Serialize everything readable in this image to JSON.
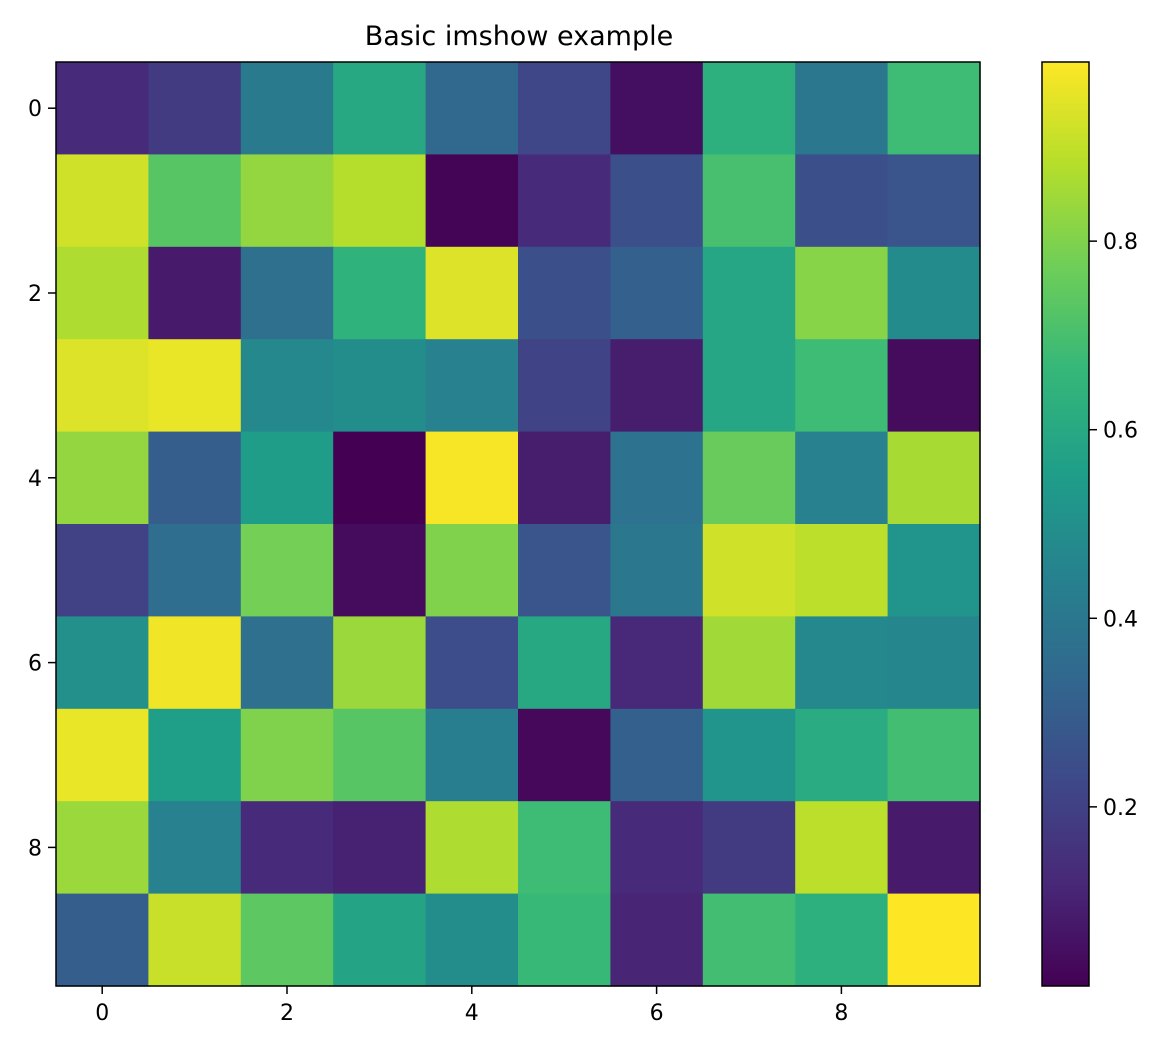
{
  "chart_data": {
    "type": "heatmap",
    "title": "Basic imshow example",
    "xlabel": "",
    "ylabel": "",
    "rows": 10,
    "cols": 10,
    "values": [
      [
        0.13,
        0.18,
        0.41,
        0.6,
        0.34,
        0.22,
        0.05,
        0.63,
        0.4,
        0.68
      ],
      [
        0.92,
        0.73,
        0.83,
        0.88,
        0.02,
        0.13,
        0.25,
        0.7,
        0.25,
        0.27
      ],
      [
        0.87,
        0.08,
        0.37,
        0.64,
        0.94,
        0.25,
        0.31,
        0.59,
        0.81,
        0.48
      ],
      [
        0.94,
        0.96,
        0.47,
        0.49,
        0.44,
        0.21,
        0.09,
        0.59,
        0.68,
        0.04
      ],
      [
        0.83,
        0.3,
        0.55,
        0.01,
        0.98,
        0.09,
        0.38,
        0.76,
        0.44,
        0.86
      ],
      [
        0.2,
        0.36,
        0.78,
        0.04,
        0.8,
        0.27,
        0.4,
        0.92,
        0.89,
        0.52
      ],
      [
        0.5,
        0.97,
        0.37,
        0.84,
        0.24,
        0.6,
        0.12,
        0.85,
        0.47,
        0.46
      ],
      [
        0.96,
        0.56,
        0.8,
        0.73,
        0.43,
        0.03,
        0.31,
        0.52,
        0.61,
        0.69
      ],
      [
        0.84,
        0.44,
        0.13,
        0.1,
        0.87,
        0.68,
        0.13,
        0.18,
        0.89,
        0.08
      ],
      [
        0.3,
        0.91,
        0.74,
        0.58,
        0.49,
        0.67,
        0.11,
        0.69,
        0.63,
        0.99
      ]
    ],
    "xticks": [
      0,
      2,
      4,
      6,
      8
    ],
    "yticks": [
      0,
      2,
      4,
      6,
      8
    ],
    "colorbar": {
      "range": [
        0.01,
        0.99
      ],
      "ticks": [
        0.2,
        0.4,
        0.6,
        0.8
      ],
      "tick_labels": [
        "0.2",
        "0.4",
        "0.6",
        "0.8"
      ]
    },
    "colormap": "viridis",
    "colormap_stops": [
      "#440154",
      "#482878",
      "#3e4989",
      "#31688e",
      "#26828e",
      "#1f9e89",
      "#35b779",
      "#6ece58",
      "#b5de2b",
      "#fde725"
    ],
    "grid": false
  }
}
